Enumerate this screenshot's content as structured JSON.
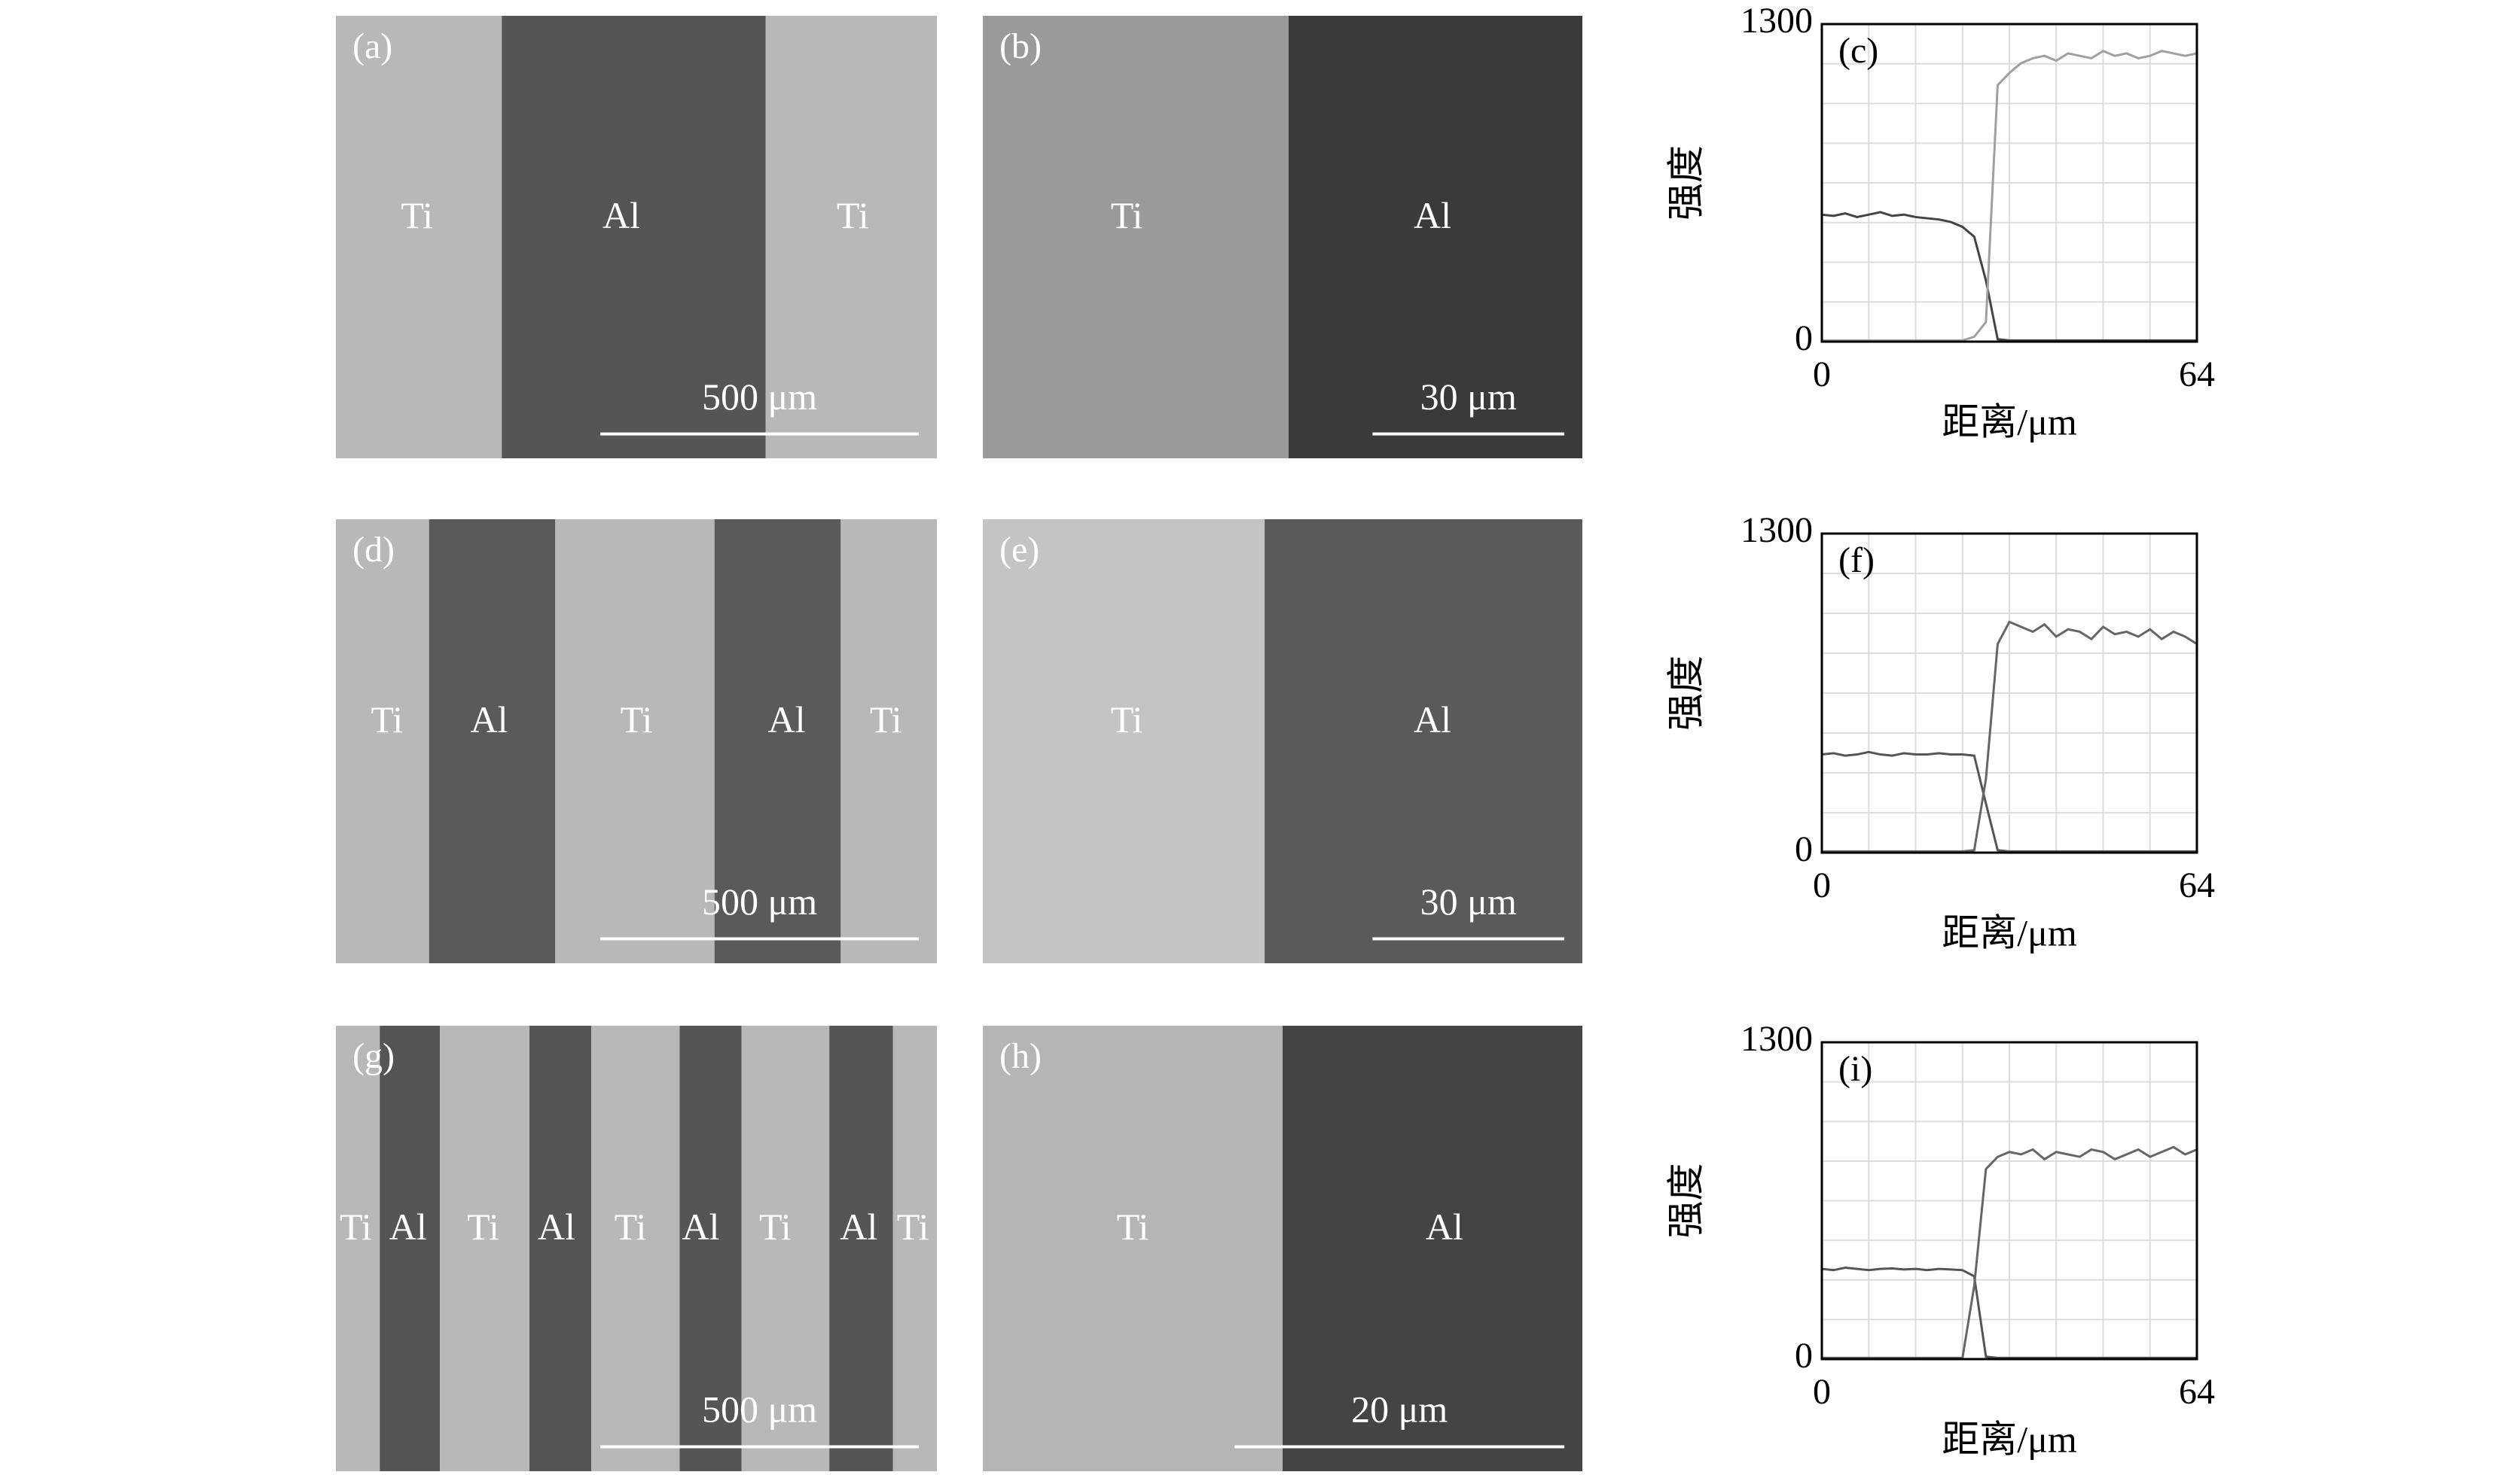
{
  "panels": [
    {
      "label": "(a)",
      "phases": [
        "Ti",
        "Al",
        "Ti"
      ],
      "scale_bar": "500 μm"
    },
    {
      "label": "(b)",
      "phases": [
        "Ti",
        "Al"
      ],
      "scale_bar": "30 μm"
    },
    {
      "label": "(d)",
      "phases": [
        "Ti",
        "Al",
        "Ti",
        "Al",
        "Ti"
      ],
      "scale_bar": "500 μm"
    },
    {
      "label": "(e)",
      "phases": [
        "Ti",
        "Al"
      ],
      "scale_bar": "30 μm"
    },
    {
      "label": "(g)",
      "phases": [
        "Ti",
        "Al",
        "Ti",
        "Al",
        "Ti",
        "Al",
        "Ti",
        "Al",
        "Ti"
      ],
      "scale_bar": "500 μm"
    },
    {
      "label": "(h)",
      "phases": [
        "Ti",
        "Al"
      ],
      "scale_bar": "20 μm"
    }
  ],
  "chart_data": [
    {
      "type": "line",
      "label": "(c)",
      "xlabel": "距离/μm",
      "ylabel": "强度",
      "xlim": [
        0,
        64
      ],
      "ylim": [
        0,
        1300
      ],
      "xticks": [
        0,
        64
      ],
      "yticks": [
        0,
        1300
      ],
      "grid": true,
      "x": [
        0,
        2,
        4,
        6,
        8,
        10,
        12,
        14,
        16,
        18,
        20,
        22,
        24,
        26,
        28,
        30,
        32,
        34,
        36,
        38,
        40,
        42,
        44,
        46,
        48,
        50,
        52,
        54,
        56,
        58,
        60,
        62,
        64
      ],
      "series": [
        {
          "color": "#444444",
          "values": [
            520,
            515,
            525,
            510,
            520,
            530,
            515,
            520,
            510,
            505,
            500,
            490,
            470,
            430,
            250,
            10,
            5,
            5,
            5,
            5,
            5,
            5,
            5,
            5,
            5,
            5,
            5,
            5,
            5,
            5,
            5,
            5,
            5
          ]
        },
        {
          "color": "#a0a0a0",
          "values": [
            5,
            5,
            5,
            5,
            5,
            5,
            5,
            5,
            5,
            5,
            5,
            5,
            5,
            20,
            80,
            1050,
            1100,
            1140,
            1160,
            1170,
            1150,
            1180,
            1170,
            1160,
            1190,
            1170,
            1180,
            1160,
            1170,
            1190,
            1180,
            1170,
            1180
          ]
        }
      ]
    },
    {
      "type": "line",
      "label": "(f)",
      "xlabel": "距离/μm",
      "ylabel": "强度",
      "xlim": [
        0,
        64
      ],
      "ylim": [
        0,
        1300
      ],
      "xticks": [
        0,
        64
      ],
      "yticks": [
        0,
        1300
      ],
      "grid": true,
      "x": [
        0,
        2,
        4,
        6,
        8,
        10,
        12,
        14,
        16,
        18,
        20,
        22,
        24,
        26,
        28,
        30,
        32,
        34,
        36,
        38,
        40,
        42,
        44,
        46,
        48,
        50,
        52,
        54,
        56,
        58,
        60,
        62,
        64
      ],
      "series": [
        {
          "color": "#555555",
          "values": [
            400,
            405,
            395,
            400,
            410,
            400,
            395,
            405,
            400,
            400,
            405,
            400,
            400,
            395,
            200,
            10,
            5,
            5,
            5,
            5,
            5,
            5,
            5,
            5,
            5,
            5,
            5,
            5,
            5,
            5,
            5,
            5,
            5
          ]
        },
        {
          "color": "#666666",
          "values": [
            5,
            5,
            5,
            5,
            5,
            5,
            5,
            5,
            5,
            5,
            5,
            5,
            5,
            10,
            300,
            850,
            940,
            920,
            900,
            930,
            880,
            910,
            900,
            870,
            920,
            890,
            900,
            880,
            910,
            870,
            900,
            880,
            850
          ]
        }
      ]
    },
    {
      "type": "line",
      "label": "(i)",
      "xlabel": "距离/μm",
      "ylabel": "强度",
      "xlim": [
        0,
        64
      ],
      "ylim": [
        0,
        1300
      ],
      "xticks": [
        0,
        64
      ],
      "yticks": [
        0,
        1300
      ],
      "grid": true,
      "x": [
        0,
        2,
        4,
        6,
        8,
        10,
        12,
        14,
        16,
        18,
        20,
        22,
        24,
        26,
        28,
        30,
        32,
        34,
        36,
        38,
        40,
        42,
        44,
        46,
        48,
        50,
        52,
        54,
        56,
        58,
        60,
        62,
        64
      ],
      "series": [
        {
          "color": "#555555",
          "values": [
            370,
            365,
            375,
            370,
            365,
            370,
            372,
            368,
            370,
            365,
            370,
            368,
            365,
            340,
            10,
            5,
            5,
            5,
            5,
            5,
            5,
            5,
            5,
            5,
            5,
            5,
            5,
            5,
            5,
            5,
            5,
            5,
            5
          ]
        },
        {
          "color": "#666666",
          "values": [
            5,
            5,
            5,
            5,
            5,
            5,
            5,
            5,
            5,
            5,
            5,
            5,
            5,
            300,
            780,
            830,
            850,
            840,
            860,
            820,
            850,
            840,
            830,
            860,
            850,
            820,
            840,
            860,
            830,
            850,
            870,
            840,
            860
          ]
        }
      ]
    }
  ]
}
